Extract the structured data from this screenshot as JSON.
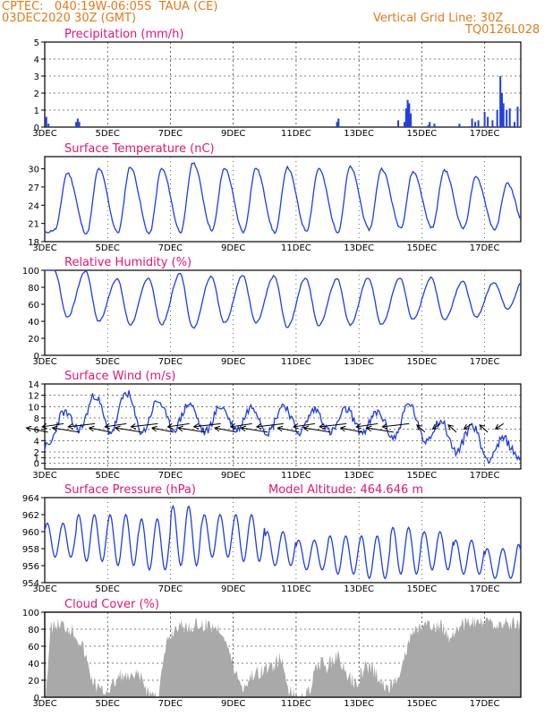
{
  "header": {
    "line1": "CPTEC:   040:19W-06:05S  TAUA (CE)",
    "line2": "03DEC2020 30Z (GMT)",
    "grid_note": "Vertical Grid Line: 30Z",
    "model_code": "TQ0126L028"
  },
  "colors": {
    "header": "#e07b1a",
    "panel_title": "#e0157a",
    "series": "#1f3fe0",
    "arrow": "#000000",
    "cloud_fill": "#a9a9a9"
  },
  "x_axis": {
    "tick_labels": [
      "3DEC",
      "5DEC",
      "7DEC",
      "9DEC",
      "11DEC",
      "13DEC",
      "15DEC",
      "17DEC"
    ],
    "tick_days": [
      3,
      5,
      7,
      9,
      11,
      13,
      15,
      17
    ],
    "range_days": [
      3.0,
      18.15
    ]
  },
  "chart_data": [
    {
      "type": "bar",
      "title": "Precipitation (mm/h)",
      "ylim": [
        0,
        5
      ],
      "yticks": [
        0,
        1,
        2,
        3,
        4,
        5
      ],
      "grid": true,
      "x_days": [
        3.05,
        3.12,
        4.0,
        4.05,
        4.1,
        12.3,
        12.35,
        14.25,
        14.45,
        14.5,
        14.55,
        14.6,
        14.65,
        15.2,
        15.25,
        15.4,
        16.2,
        16.6,
        16.7,
        16.8,
        17.0,
        17.1,
        17.25,
        17.4,
        17.5,
        17.55,
        17.6,
        17.7,
        17.8,
        17.95,
        18.05
      ],
      "values": [
        0.6,
        0.2,
        0.3,
        0.5,
        0.3,
        0.3,
        0.5,
        0.4,
        0.3,
        1.1,
        1.6,
        1.4,
        0.8,
        0.1,
        0.3,
        0.2,
        0.2,
        0.5,
        0.3,
        0.4,
        0.9,
        0.6,
        0.4,
        1.0,
        3.0,
        2.0,
        1.4,
        1.0,
        1.1,
        0.3,
        1.2
      ]
    },
    {
      "type": "line",
      "title": "Surface Temperature (nC)",
      "ylim": [
        18,
        32
      ],
      "yticks": [
        18,
        21,
        24,
        27,
        30
      ],
      "grid": false,
      "min_day": [
        20.0,
        19.3,
        19.5,
        19.3,
        19.6,
        19.9,
        19.6,
        19.5,
        19.8,
        19.6,
        20.0,
        20.3,
        20.3,
        20.2,
        20.0,
        19.6
      ],
      "max_day": [
        29.3,
        30.0,
        30.3,
        30.0,
        31.0,
        30.1,
        30.1,
        30.2,
        30.0,
        30.3,
        30.0,
        29.5,
        29.8,
        28.6,
        27.6,
        27.2
      ]
    },
    {
      "type": "line",
      "title": "Relative Humidity (%)",
      "ylim": [
        0,
        100
      ],
      "yticks": [
        0,
        20,
        40,
        60,
        80,
        100
      ],
      "grid": false,
      "max_night": [
        100,
        99,
        90,
        91,
        96,
        93,
        94,
        93,
        91,
        90,
        91,
        91,
        91,
        87,
        86,
        93
      ],
      "min_day": [
        45,
        40,
        36,
        36,
        32,
        38,
        38,
        33,
        35,
        36,
        36,
        42,
        42,
        45,
        55,
        60
      ]
    },
    {
      "type": "line",
      "title": "Surface Wind (m/s)",
      "ylim": [
        -1,
        14
      ],
      "yticks": [
        0,
        1,
        2,
        4,
        6,
        8,
        10,
        12,
        14
      ],
      "grid": true,
      "speed_day_peaks": [
        9.0,
        12.0,
        12.5,
        11.0,
        10.5,
        10.0,
        10.0,
        10.3,
        9.5,
        9.5,
        9.0,
        10.5,
        7.5,
        6.8,
        4.3,
        5.5
      ],
      "speed_night_lows": [
        3.0,
        6.0,
        5.5,
        5.5,
        6.0,
        5.5,
        6.0,
        5.5,
        5.5,
        5.5,
        5.5,
        4.5,
        4.0,
        2.0,
        0.8,
        1.0
      ],
      "arrows": "wind direction arrows from the east, shrinking after 15DEC"
    },
    {
      "type": "line",
      "title": "Surface Pressure (hPa)",
      "annotation": "Model Altitude: 464.646 m",
      "ylim": [
        954,
        964
      ],
      "yticks": [
        954,
        956,
        958,
        960,
        962,
        964
      ],
      "grid": false,
      "peaks": [
        961.0,
        962.0,
        962.0,
        961.5,
        963.0,
        962.0,
        962.0,
        960.0,
        959.0,
        959.5,
        959.5,
        960.5,
        960.0,
        959.0,
        958.0,
        958.5
      ],
      "troughs": [
        957.0,
        956.5,
        956.0,
        955.5,
        956.0,
        957.0,
        956.5,
        956.0,
        955.5,
        955.0,
        954.5,
        955.0,
        955.5,
        955.0,
        954.5,
        954.0
      ]
    },
    {
      "type": "area",
      "title": "Cloud Cover (%)",
      "ylim": [
        0,
        100
      ],
      "yticks": [
        0,
        20,
        40,
        60,
        80,
        100
      ],
      "grid": true,
      "x_days": [
        3.0,
        3.2,
        3.5,
        3.9,
        4.2,
        4.5,
        4.8,
        5.1,
        5.4,
        5.7,
        6.0,
        6.3,
        6.6,
        6.9,
        7.2,
        7.5,
        7.8,
        8.1,
        8.4,
        8.7,
        9.0,
        9.3,
        9.6,
        9.9,
        10.2,
        10.5,
        10.8,
        11.1,
        11.4,
        11.7,
        12.0,
        12.3,
        12.6,
        12.9,
        13.2,
        13.5,
        13.8,
        14.1,
        14.4,
        14.7,
        15.0,
        15.3,
        15.6,
        15.9,
        16.2,
        16.5,
        16.8,
        17.1,
        17.4,
        17.7,
        18.0,
        18.15
      ],
      "values": [
        0,
        92,
        95,
        88,
        70,
        30,
        15,
        20,
        35,
        30,
        35,
        15,
        10,
        75,
        93,
        92,
        93,
        94,
        93,
        85,
        45,
        20,
        35,
        40,
        45,
        55,
        15,
        5,
        15,
        50,
        45,
        60,
        35,
        25,
        45,
        40,
        20,
        25,
        50,
        85,
        92,
        90,
        93,
        80,
        95,
        96,
        95,
        96,
        95,
        96,
        95,
        95
      ]
    }
  ]
}
